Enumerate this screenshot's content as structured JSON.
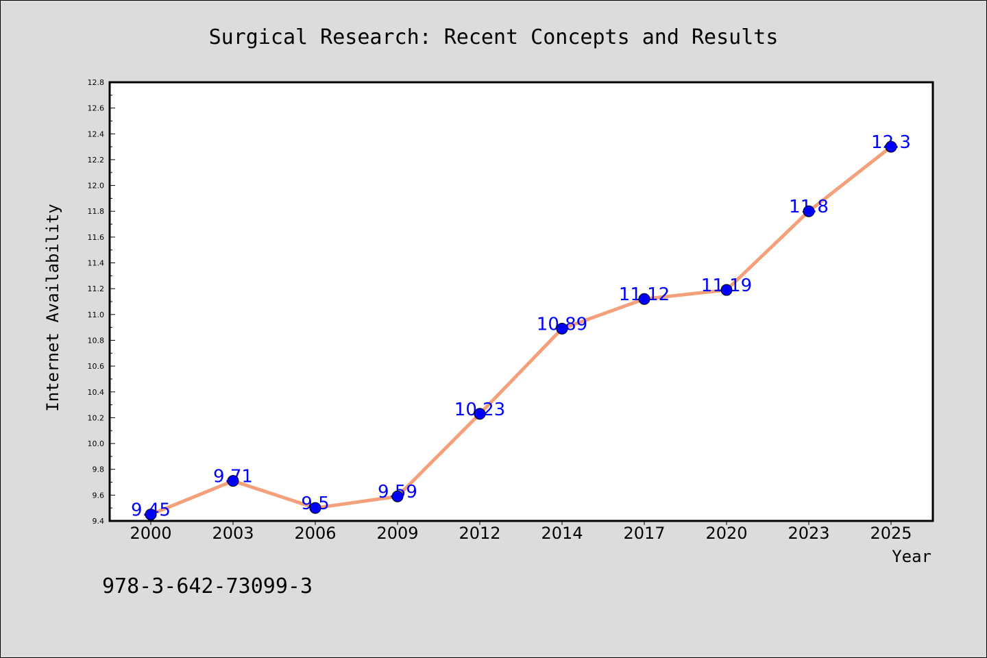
{
  "footer_text": "978-3-642-73099-3",
  "chart_data": {
    "type": "line",
    "title": "Surgical Research: Recent Concepts and Results",
    "xlabel": "Year",
    "ylabel": "Internet Availability",
    "categories": [
      "2000",
      "2003",
      "2006",
      "2009",
      "2012",
      "2014",
      "2017",
      "2020",
      "2023",
      "2025"
    ],
    "values": [
      9.45,
      9.71,
      9.5,
      9.59,
      10.23,
      10.89,
      11.12,
      11.19,
      11.8,
      12.3
    ],
    "data_labels": [
      "9.45",
      "9.71",
      "9.5",
      "9.59",
      "10.23",
      "10.89",
      "11.12",
      "11.19",
      "11.8",
      "12.3"
    ],
    "ylim": [
      9.4,
      12.8
    ],
    "yticks": [
      "9.4",
      "9.6",
      "9.8",
      "10.0",
      "10.2",
      "10.4",
      "10.6",
      "10.8",
      "11.0",
      "11.2",
      "11.4",
      "11.6",
      "11.8",
      "12.0",
      "12.2",
      "12.4",
      "12.6",
      "12.8"
    ],
    "grid": false,
    "colors": {
      "line": "#f4a07a",
      "marker": "#0000ff",
      "label": "#0000ff",
      "plot_bg": "#ffffff",
      "page_bg": "#dcdcdc"
    }
  }
}
